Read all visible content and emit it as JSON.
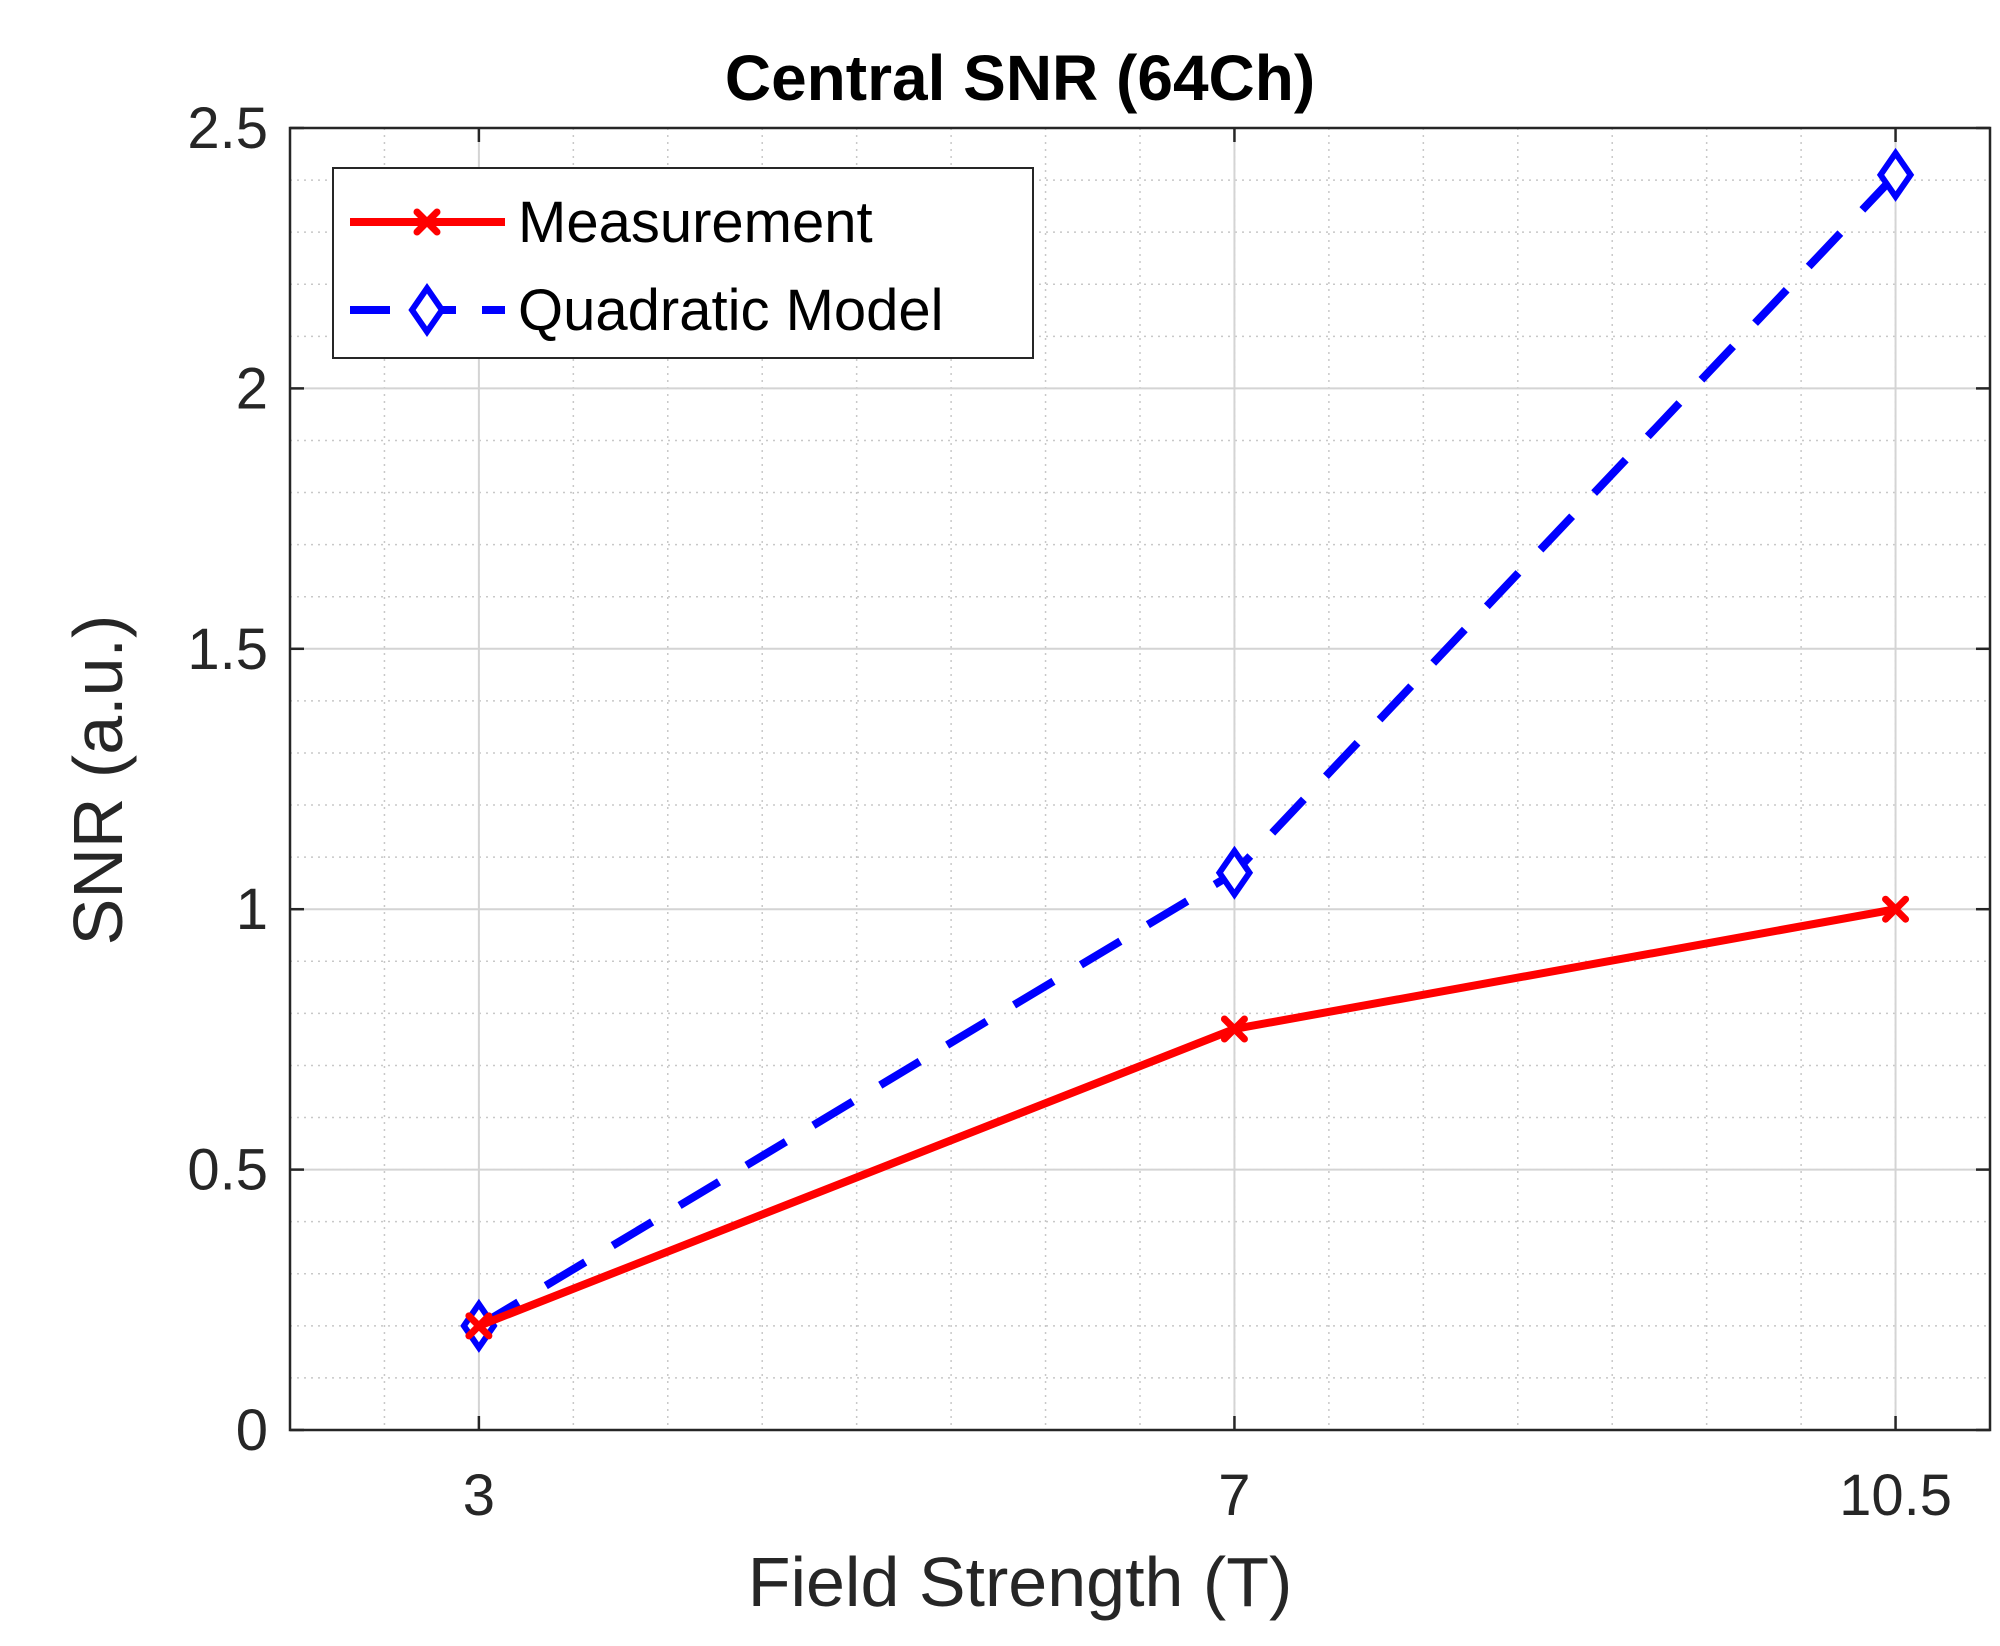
{
  "chart_data": {
    "type": "line",
    "title": "Central SNR (64Ch)",
    "xlabel": "Field Strength (T)",
    "ylabel": "SNR (a.u.)",
    "x": [
      3,
      7,
      10.5
    ],
    "xticks": [
      3,
      7,
      10.5
    ],
    "xtick_labels": [
      "3",
      "7",
      "10.5"
    ],
    "xlim": [
      2,
      11
    ],
    "yticks": [
      0,
      0.5,
      1,
      1.5,
      2,
      2.5
    ],
    "ytick_labels": [
      "0",
      "0.5",
      "1",
      "1.5",
      "2",
      "2.5"
    ],
    "ylim": [
      0,
      2.5
    ],
    "grid": true,
    "minor_grid": true,
    "legend_position": "top-left",
    "series": [
      {
        "name": "Measurement",
        "values": [
          0.2,
          0.77,
          1.0
        ],
        "color": "#ff0000",
        "line_style": "solid",
        "marker": "x"
      },
      {
        "name": "Quadratic Model",
        "values": [
          0.2,
          1.07,
          2.41
        ],
        "color": "#0000ff",
        "line_style": "dashed",
        "marker": "diamond"
      }
    ]
  }
}
